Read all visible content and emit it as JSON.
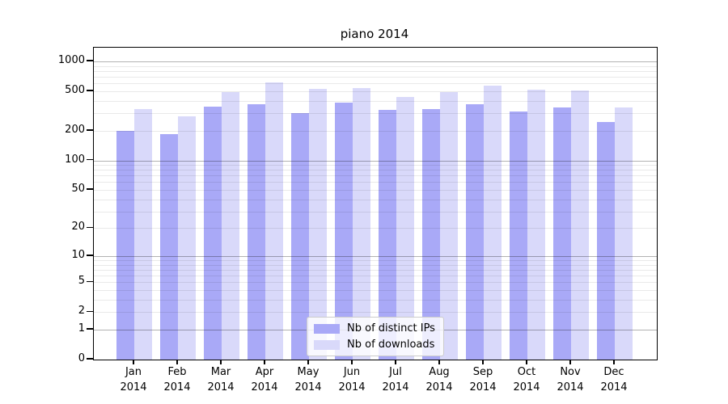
{
  "title": "piano 2014",
  "legend": {
    "items": [
      {
        "label": "Nb of distinct IPs",
        "color_key": "distinct_ips"
      },
      {
        "label": "Nb of downloads",
        "color_key": "downloads"
      }
    ]
  },
  "colors": {
    "distinct_ips": "#a9a9f7",
    "downloads": "#d9d9fa",
    "grid_major": "rgba(0,0,0,0.30)",
    "grid_minor": "rgba(0,0,0,0.085)",
    "axis": "#000000",
    "legend_border": "#cccccc"
  },
  "chart_data": {
    "type": "bar",
    "title": "piano 2014",
    "categories": [
      "Jan 2014",
      "Feb 2014",
      "Mar 2014",
      "Apr 2014",
      "May 2014",
      "Jun 2014",
      "Jul 2014",
      "Aug 2014",
      "Sep 2014",
      "Oct 2014",
      "Nov 2014",
      "Dec 2014"
    ],
    "series": [
      {
        "name": "Nb of distinct IPs",
        "values": [
          200,
          185,
          350,
          370,
          300,
          385,
          325,
          330,
          370,
          315,
          345,
          245
        ]
      },
      {
        "name": "Nb of downloads",
        "values": [
          330,
          280,
          495,
          615,
          525,
          540,
          440,
          490,
          570,
          515,
          510,
          345
        ]
      }
    ],
    "yscale": "log10(1+y)",
    "yticks": [
      0,
      1,
      2,
      5,
      10,
      20,
      50,
      100,
      200,
      500,
      1000
    ],
    "minor_gridlines": [
      2,
      3,
      4,
      5,
      6,
      7,
      8,
      9,
      20,
      30,
      40,
      50,
      60,
      70,
      80,
      90,
      200,
      300,
      400,
      500,
      600,
      700,
      800,
      900
    ],
    "major_gridlines": [
      1,
      10,
      100,
      1000
    ],
    "ylim": [
      0,
      1100
    ],
    "grid": true,
    "legend_position": "lower center",
    "xlabel": "",
    "ylabel": ""
  }
}
